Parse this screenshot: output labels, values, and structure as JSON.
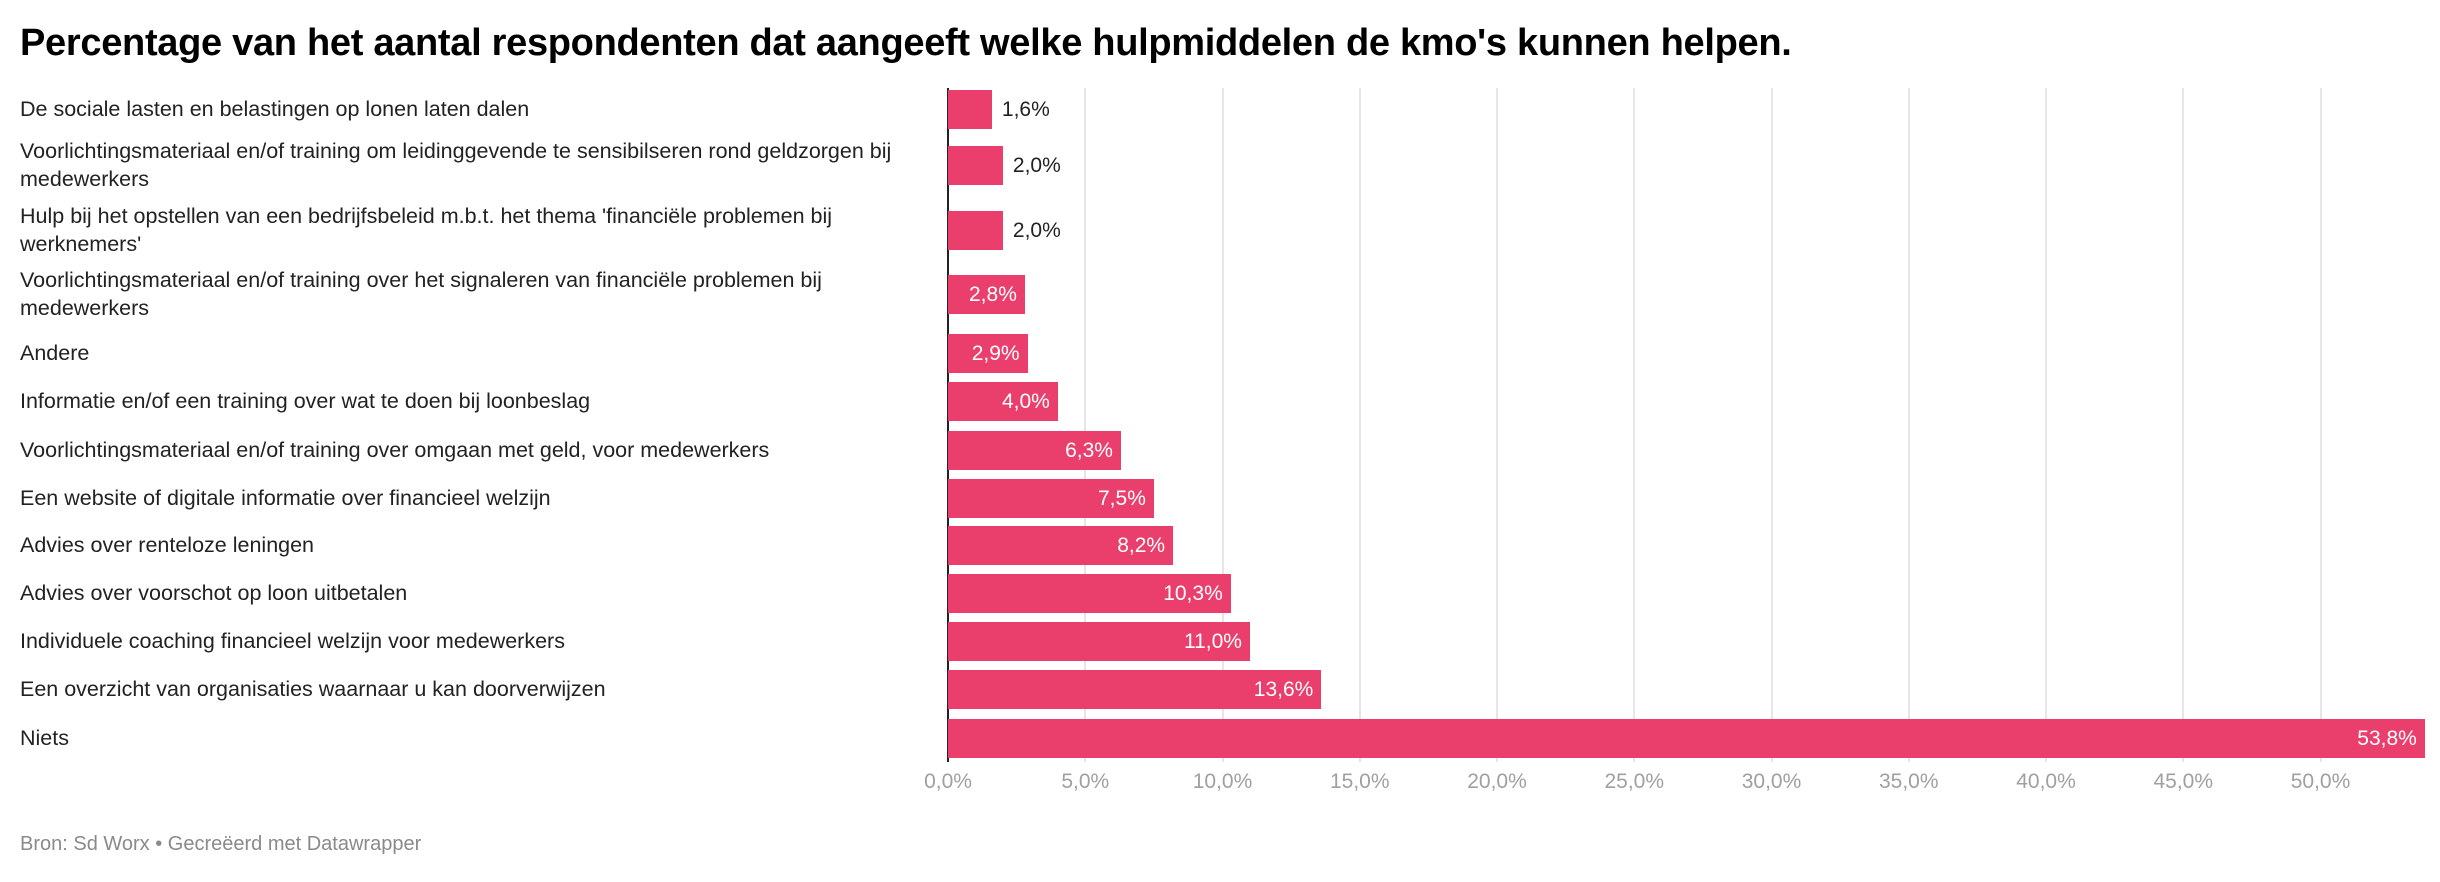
{
  "chart_data": {
    "type": "bar",
    "orientation": "horizontal",
    "title": "Percentage van het aantal respondenten dat aangeeft welke hulpmiddelen de kmo's kunnen helpen.",
    "categories": [
      "De sociale lasten en belastingen op lonen laten dalen",
      "Voorlichtingsmateriaal en/of training om leidinggevende te sensibilseren rond geldzorgen bij medewerkers",
      "Hulp bij het opstellen van een bedrijfsbeleid m.b.t. het thema 'financiële problemen bij werknemers'",
      "Voorlichtingsmateriaal en/of training over het signaleren van financiële problemen bij medewerkers",
      "Andere",
      "Informatie en/of een training over wat te doen bij loonbeslag",
      "Voorlichtingsmateriaal en/of training over omgaan met geld, voor medewerkers",
      "Een website of digitale informatie over financieel welzijn",
      "Advies over renteloze leningen",
      "Advies over voorschot op loon uitbetalen",
      "Individuele coaching financieel welzijn voor medewerkers",
      "Een overzicht van organisaties waarnaar u kan doorverwijzen",
      "Niets"
    ],
    "values": [
      1.6,
      2.0,
      2.0,
      2.8,
      2.9,
      4.0,
      6.3,
      7.5,
      8.2,
      10.3,
      11.0,
      13.6,
      53.8
    ],
    "value_labels": [
      "1,6%",
      "2,0%",
      "2,0%",
      "2,8%",
      "2,9%",
      "4,0%",
      "6,3%",
      "7,5%",
      "8,2%",
      "10,3%",
      "11,0%",
      "13,6%",
      "53,8%"
    ],
    "xlim": [
      0,
      53.8
    ],
    "xticks": [
      0,
      5,
      10,
      15,
      20,
      25,
      30,
      35,
      40,
      45,
      50
    ],
    "xtick_labels": [
      "0,0%",
      "5,0%",
      "10,0%",
      "15,0%",
      "20,0%",
      "25,0%",
      "30,0%",
      "35,0%",
      "40,0%",
      "45,0%",
      "50,0%"
    ],
    "grid": true,
    "bar_color": "#ea3f6c",
    "source": "Bron: Sd Worx • Gecreëerd met Datawrapper"
  }
}
